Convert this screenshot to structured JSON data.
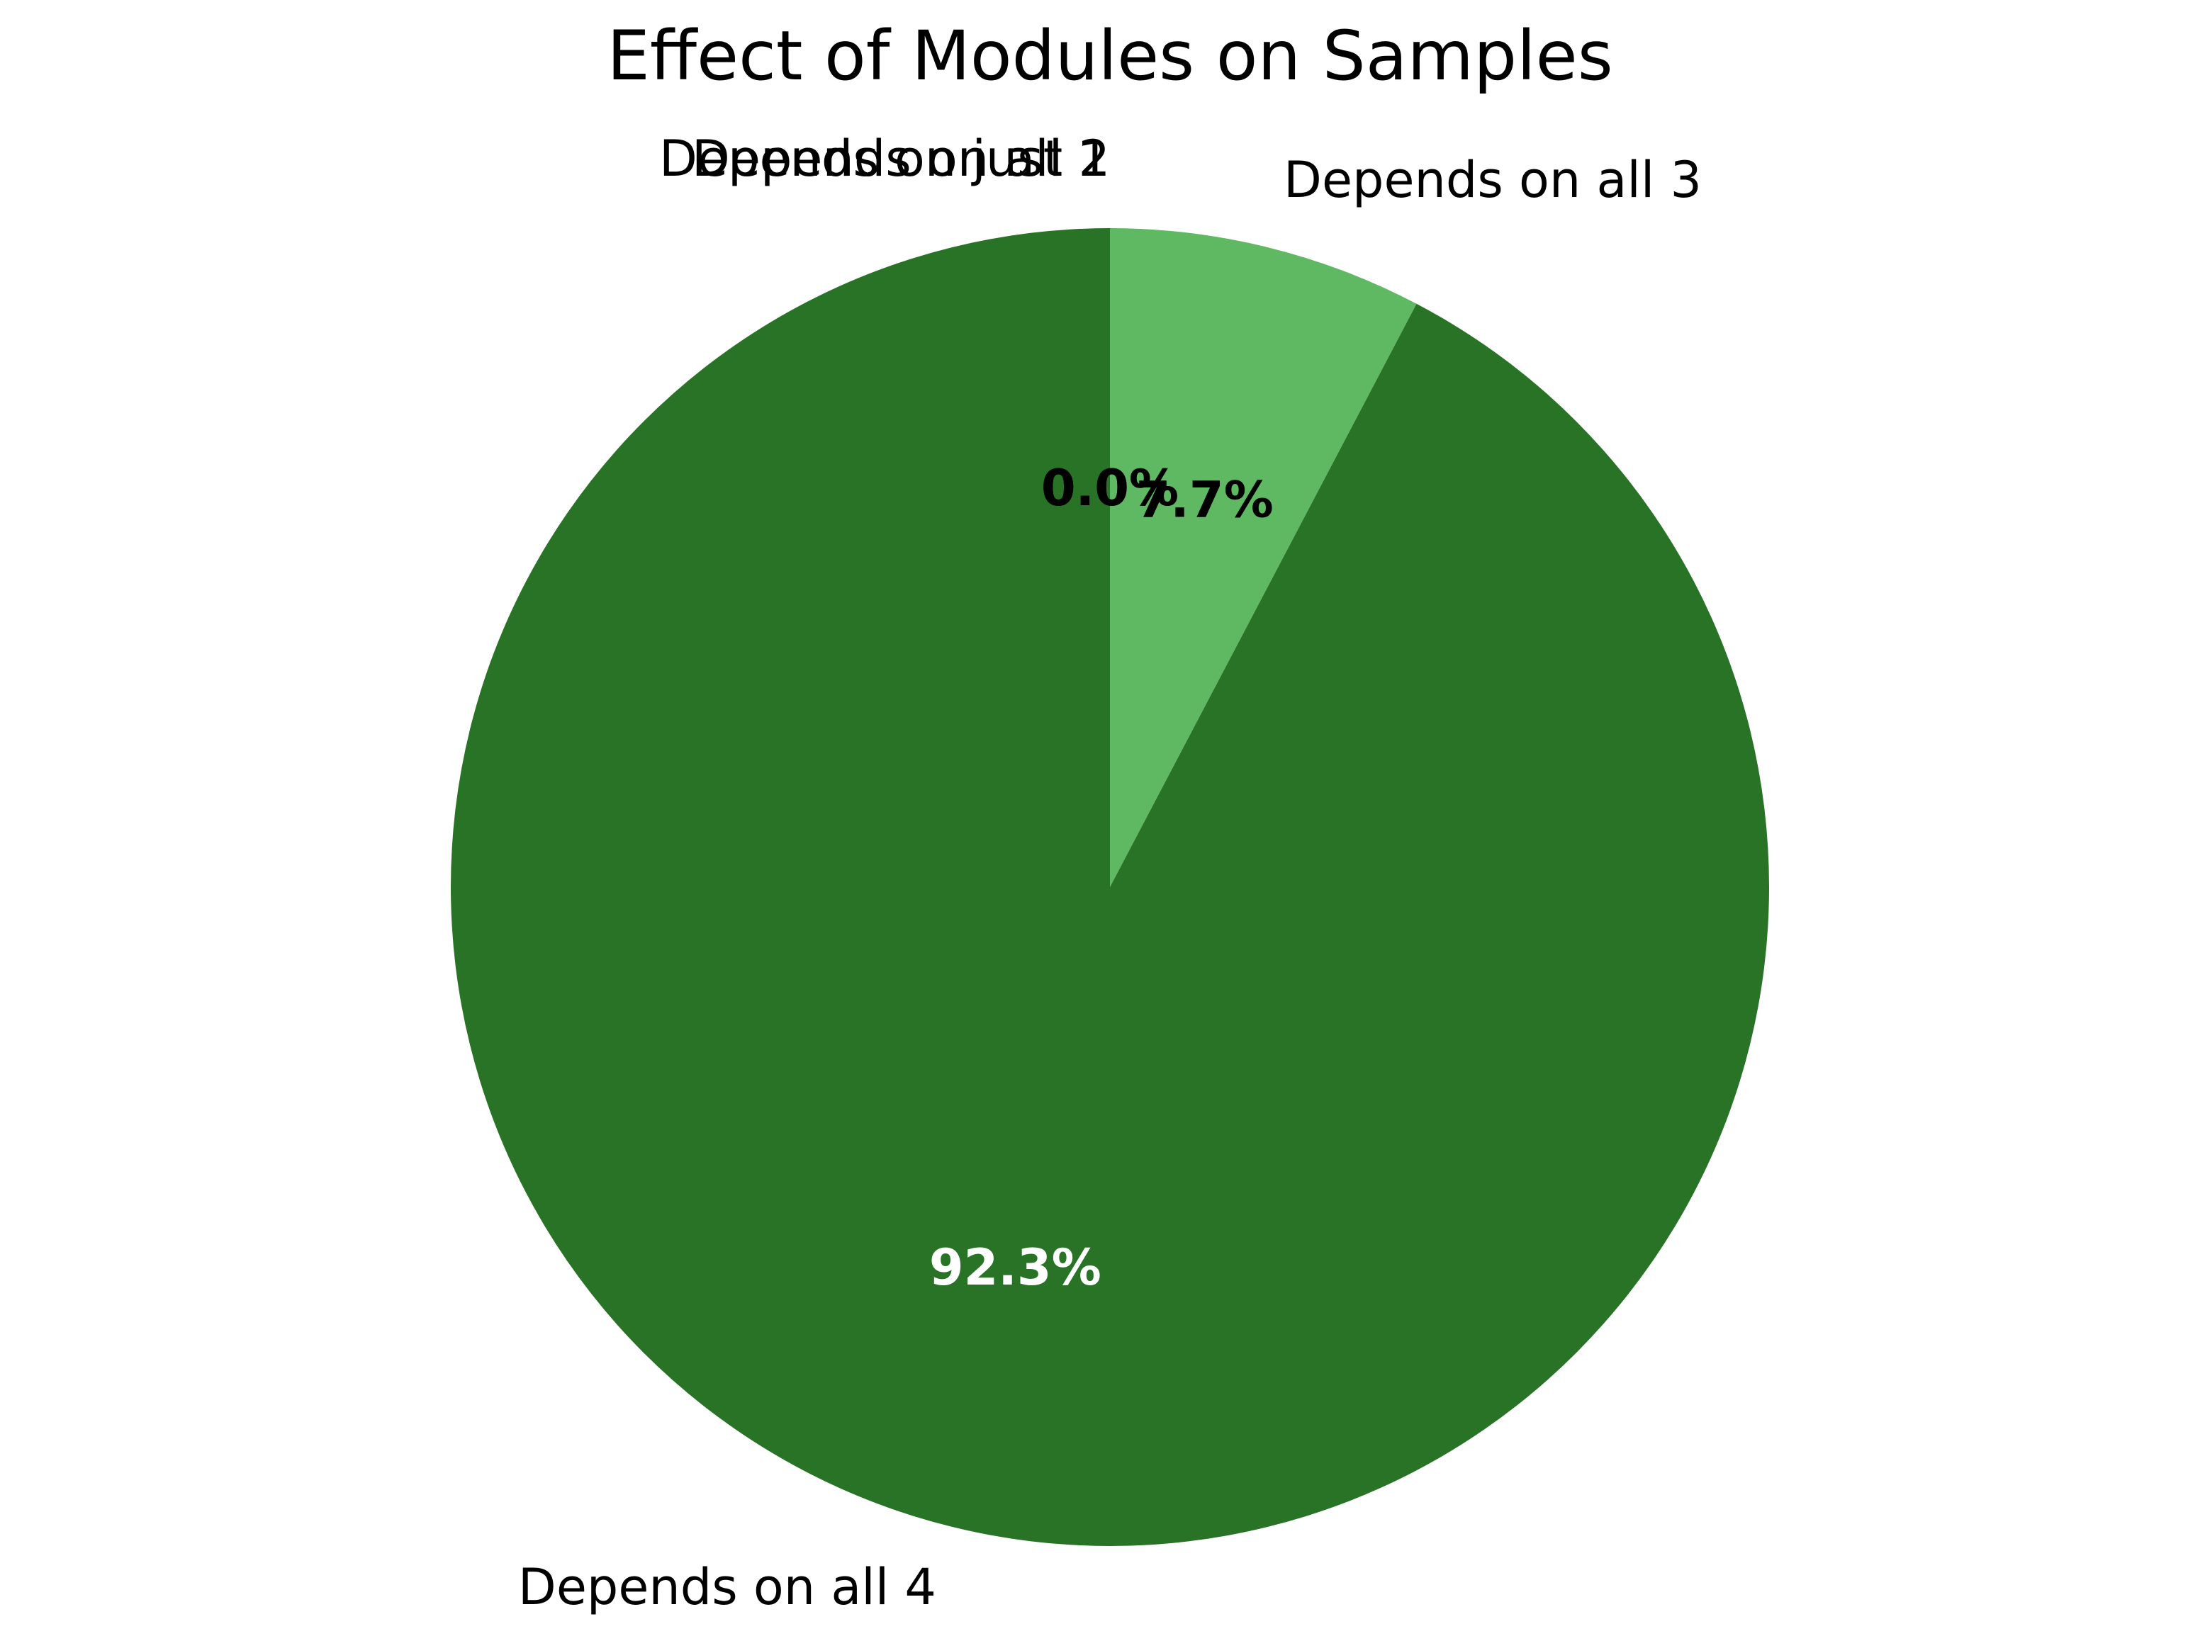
{
  "chart_data": {
    "type": "pie",
    "title": "Effect of Modules on Samples",
    "slices": [
      {
        "label": "Depends on just 1",
        "value": 0.0,
        "pct_label": "0.0%",
        "color": "#c7e9c0",
        "pct_color": "#000000"
      },
      {
        "label": "Depends on all 2",
        "value": 0.0,
        "pct_label": "0.0%",
        "color": "#a1d99b",
        "pct_color": "#000000"
      },
      {
        "label": "Depends on all 3",
        "value": 7.7,
        "pct_label": "7.7%",
        "color": "#5fb962",
        "pct_color": "#000000"
      },
      {
        "label": "Depends on all 4",
        "value": 92.3,
        "pct_label": "92.3%",
        "color": "#287326",
        "pct_color": "#ffffff"
      }
    ],
    "start_angle": "top",
    "direction": "clockwise",
    "legend": "none"
  }
}
